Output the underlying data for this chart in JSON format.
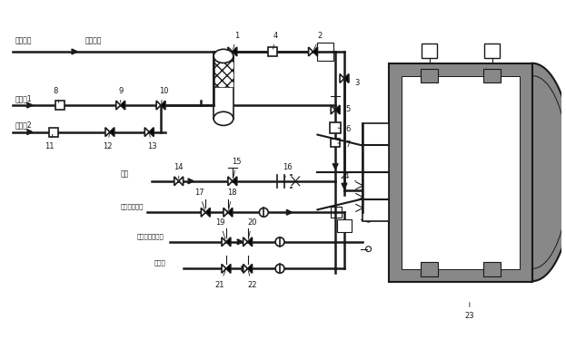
{
  "bg_color": "#ffffff",
  "lc": "#1a1a1a",
  "gray": "#aaaaaa",
  "darkgray": "#888888",
  "labels": {
    "fan_supply": "风机供风",
    "assist_air": "助燃空气",
    "acid_gas1": "酸性气1",
    "acid_gas2": "酸性气2",
    "nitrogen": "氮气",
    "main_burner_gas": "主燃烧器瓦斯",
    "aux_burner_gas": "辅助燃烧器瓦斯",
    "purge_air": "净化风"
  }
}
